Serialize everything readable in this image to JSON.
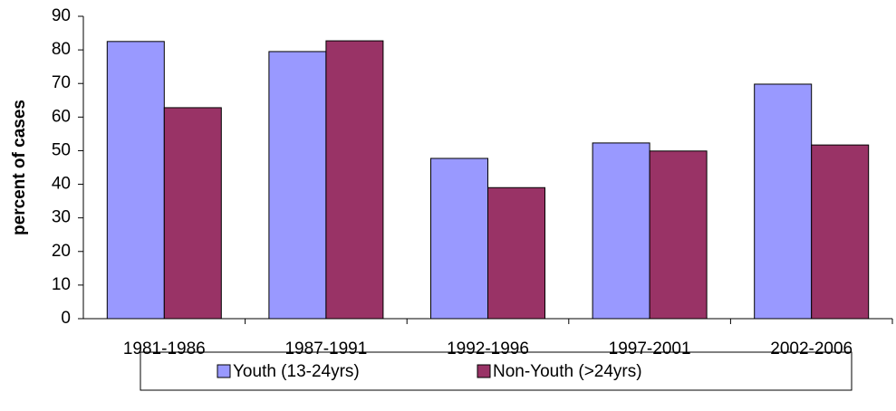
{
  "chart_data": {
    "type": "bar",
    "y_label": "percent of cases",
    "categories": [
      "1981-1986",
      "1987-1991",
      "1992-1996",
      "1997-2001",
      "2002-2006"
    ],
    "series": [
      {
        "name": "Youth (13-24yrs)",
        "color": "#9999ff",
        "values": [
          82.5,
          79.5,
          47.7,
          52.3,
          69.8
        ]
      },
      {
        "name": "Non-Youth (>24yrs)",
        "color": "#993366",
        "values": [
          62.8,
          82.7,
          39,
          49.9,
          51.7
        ]
      }
    ],
    "ylim": [
      0,
      90
    ],
    "yticks": [
      0,
      10,
      20,
      30,
      40,
      50,
      60,
      70,
      80,
      90
    ],
    "grid": false,
    "legend": "bottom"
  }
}
